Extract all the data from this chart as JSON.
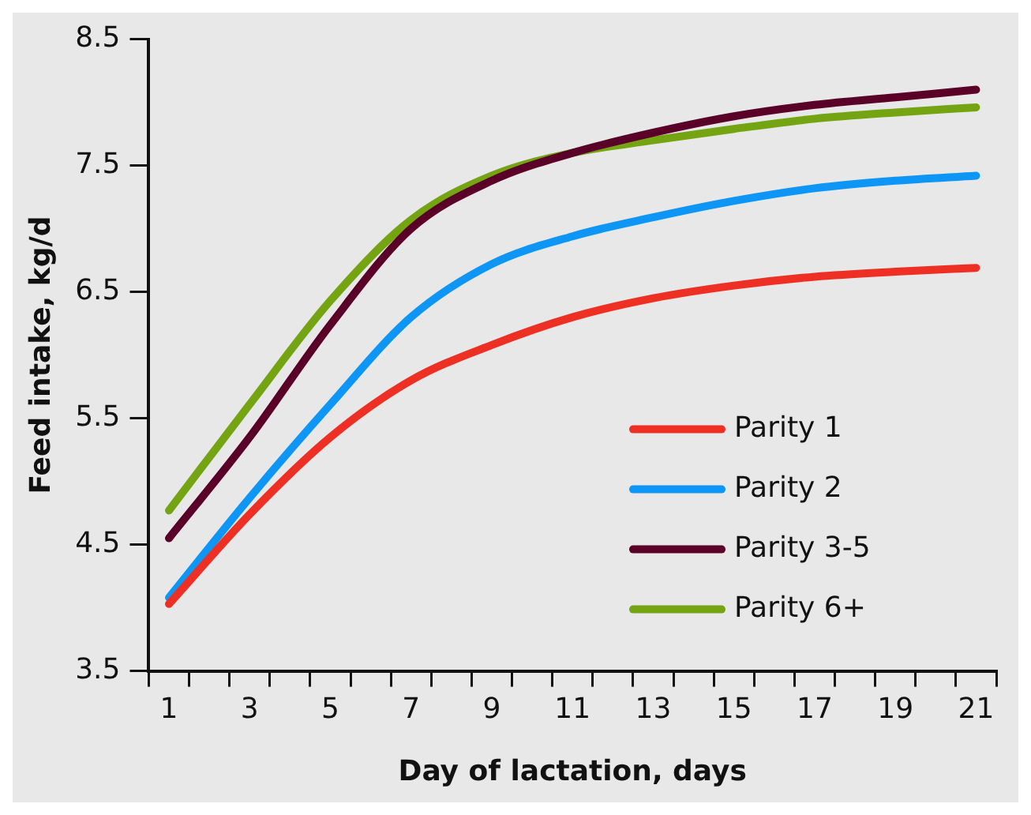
{
  "chart_data": {
    "type": "line",
    "xlabel": "Day of lactation, days",
    "ylabel": "Feed intake, kg/d",
    "x": [
      1,
      3,
      5,
      7,
      9,
      11,
      13,
      15,
      17,
      19,
      21
    ],
    "xlim": [
      0.5,
      21.5
    ],
    "xticks": [
      {
        "value": 0.5,
        "label": null
      },
      1,
      {
        "value": 1.5,
        "label": null
      },
      {
        "value": 2.5,
        "label": null
      },
      3,
      {
        "value": 3.5,
        "label": null
      },
      {
        "value": 4.5,
        "label": null
      },
      5,
      {
        "value": 5.5,
        "label": null
      },
      {
        "value": 6.5,
        "label": null
      },
      7,
      {
        "value": 7.5,
        "label": null
      },
      {
        "value": 8.5,
        "label": null
      },
      9,
      {
        "value": 9.5,
        "label": null
      },
      {
        "value": 10.5,
        "label": null
      },
      11,
      {
        "value": 11.5,
        "label": null
      },
      {
        "value": 12.5,
        "label": null
      },
      13,
      {
        "value": 13.5,
        "label": null
      },
      {
        "value": 14.5,
        "label": null
      },
      15,
      {
        "value": 15.5,
        "label": null
      },
      {
        "value": 16.5,
        "label": null
      },
      17,
      {
        "value": 17.5,
        "label": null
      },
      {
        "value": 18.5,
        "label": null
      },
      19,
      {
        "value": 19.5,
        "label": null
      },
      {
        "value": 20.5,
        "label": null
      },
      21,
      {
        "value": 21.5,
        "label": null
      }
    ],
    "ylim": [
      3.5,
      8.5
    ],
    "yticks": [
      3.5,
      4.5,
      5.5,
      6.5,
      7.5,
      8.5
    ],
    "grid": false,
    "legend": "bottom right",
    "marker": "none",
    "line_style": "solid",
    "series": [
      {
        "name": "Parity 1",
        "color": "#ee3024",
        "values": [
          4.03,
          4.74,
          5.35,
          5.8,
          6.08,
          6.3,
          6.45,
          6.55,
          6.62,
          6.66,
          6.69
        ]
      },
      {
        "name": "Parity 2",
        "color": "#0d96f6",
        "values": [
          4.08,
          4.87,
          5.61,
          6.3,
          6.72,
          6.94,
          7.09,
          7.22,
          7.32,
          7.38,
          7.42
        ]
      },
      {
        "name": "Parity 3-5",
        "color": "#5a0028",
        "values": [
          4.55,
          5.35,
          6.24,
          7.0,
          7.38,
          7.6,
          7.76,
          7.89,
          7.98,
          8.04,
          8.1
        ]
      },
      {
        "name": "Parity 6+",
        "color": "#74a412",
        "values": [
          4.77,
          5.61,
          6.43,
          7.07,
          7.42,
          7.6,
          7.7,
          7.79,
          7.87,
          7.92,
          7.96
        ]
      }
    ]
  }
}
